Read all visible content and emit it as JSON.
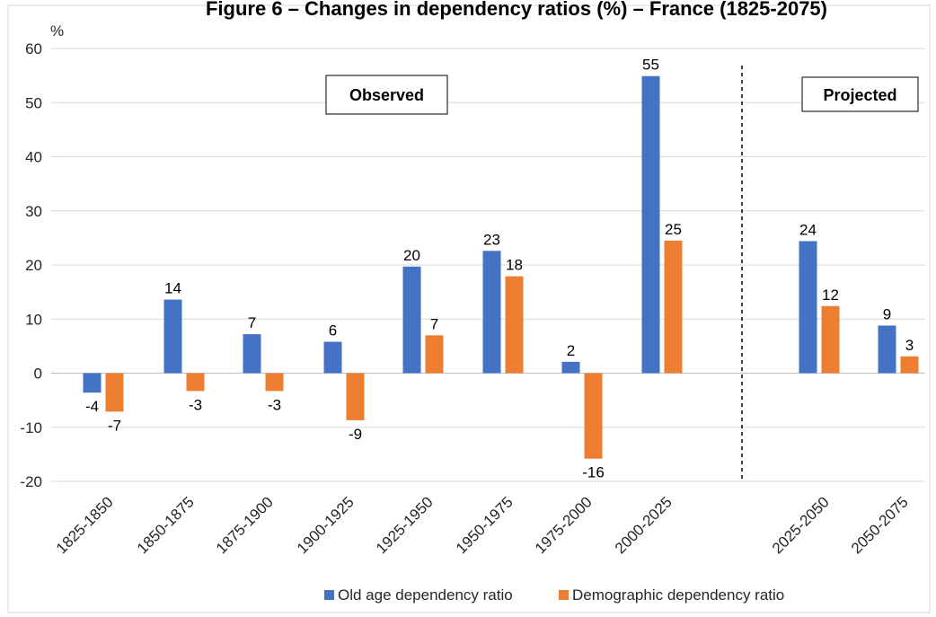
{
  "chart_data": {
    "type": "bar",
    "title": "Figure 6 – Changes in dependency ratios (%) – France (1825-2075)",
    "ylabel": "%",
    "xlabel": "",
    "ylim": [
      -20,
      60
    ],
    "yticks": [
      -20,
      -10,
      0,
      10,
      20,
      30,
      40,
      50,
      60
    ],
    "categories": [
      "1825-1850",
      "1850-1875",
      "1875-1900",
      "1900-1925",
      "1925-1950",
      "1950-1975",
      "1975-2000",
      "2000-2025",
      "2025-2050",
      "2050-2075"
    ],
    "series": [
      {
        "name": "Old age dependency ratio",
        "color": "#4472C4",
        "values": [
          -3.6,
          13.6,
          7.2,
          5.8,
          19.7,
          22.6,
          2.1,
          54.9,
          24.4,
          8.8
        ],
        "labels": [
          "-4",
          "14",
          "7",
          "6",
          "20",
          "23",
          "2",
          "55",
          "24",
          "9"
        ]
      },
      {
        "name": "Demographic dependency ratio",
        "color": "#ED7D31",
        "values": [
          -7.1,
          -3.3,
          -3.3,
          -8.7,
          7.0,
          17.9,
          -15.8,
          24.5,
          12.4,
          3.1
        ],
        "labels": [
          "-7",
          "-3",
          "-3",
          "-9",
          "7",
          "18",
          "-16",
          "25",
          "12",
          "3"
        ]
      }
    ],
    "annotations": [
      "Observed",
      "Projected"
    ],
    "grid": true,
    "legend": "bottom"
  }
}
